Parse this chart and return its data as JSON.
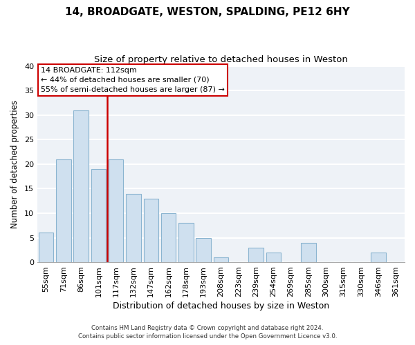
{
  "title": "14, BROADGATE, WESTON, SPALDING, PE12 6HY",
  "subtitle": "Size of property relative to detached houses in Weston",
  "xlabel": "Distribution of detached houses by size in Weston",
  "ylabel": "Number of detached properties",
  "bar_labels": [
    "55sqm",
    "71sqm",
    "86sqm",
    "101sqm",
    "117sqm",
    "132sqm",
    "147sqm",
    "162sqm",
    "178sqm",
    "193sqm",
    "208sqm",
    "223sqm",
    "239sqm",
    "254sqm",
    "269sqm",
    "285sqm",
    "300sqm",
    "315sqm",
    "330sqm",
    "346sqm",
    "361sqm"
  ],
  "bar_values": [
    6,
    21,
    31,
    19,
    21,
    14,
    13,
    10,
    8,
    5,
    1,
    0,
    3,
    2,
    0,
    4,
    0,
    0,
    0,
    2,
    0
  ],
  "bar_color": "#cfe0ef",
  "bar_edge_color": "#8ab4d0",
  "vline_color": "#cc0000",
  "annotation_text_line1": "14 BROADGATE: 112sqm",
  "annotation_text_line2": "← 44% of detached houses are smaller (70)",
  "annotation_text_line3": "55% of semi-detached houses are larger (87) →",
  "ylim": [
    0,
    40
  ],
  "yticks": [
    0,
    5,
    10,
    15,
    20,
    25,
    30,
    35,
    40
  ],
  "title_fontsize": 11,
  "subtitle_fontsize": 9.5,
  "xlabel_fontsize": 9,
  "ylabel_fontsize": 8.5,
  "tick_fontsize": 8,
  "footer_line1": "Contains HM Land Registry data © Crown copyright and database right 2024.",
  "footer_line2": "Contains public sector information licensed under the Open Government Licence v3.0.",
  "bg_color": "#eef2f7",
  "grid_color": "white",
  "fig_bg_color": "white"
}
